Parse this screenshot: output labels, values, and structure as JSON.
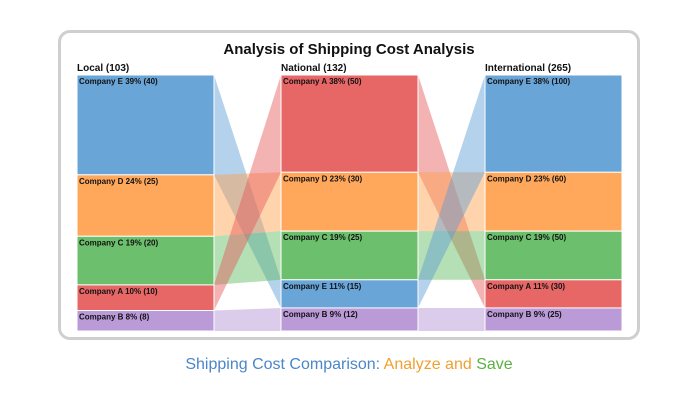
{
  "chart_data": {
    "type": "sankey",
    "title": "Analysis of Shipping Cost Analysis",
    "columns": [
      {
        "name": "Local",
        "total": 103,
        "header": "Local (103)",
        "segments": [
          {
            "company": "Company E",
            "percent": 39,
            "value": 40,
            "label": "Company E 39% (40)"
          },
          {
            "company": "Company D",
            "percent": 24,
            "value": 25,
            "label": "Company D 24% (25)"
          },
          {
            "company": "Company C",
            "percent": 19,
            "value": 20,
            "label": "Company C 19% (20)"
          },
          {
            "company": "Company A",
            "percent": 10,
            "value": 10,
            "label": "Company A 10% (10)"
          },
          {
            "company": "Company B",
            "percent": 8,
            "value": 8,
            "label": "Company B 8% (8)"
          }
        ]
      },
      {
        "name": "National",
        "total": 132,
        "header": "National (132)",
        "segments": [
          {
            "company": "Company A",
            "percent": 38,
            "value": 50,
            "label": "Company A 38% (50)"
          },
          {
            "company": "Company D",
            "percent": 23,
            "value": 30,
            "label": "Company D 23% (30)"
          },
          {
            "company": "Company C",
            "percent": 19,
            "value": 25,
            "label": "Company C 19% (25)"
          },
          {
            "company": "Company E",
            "percent": 11,
            "value": 15,
            "label": "Company E 11% (15)"
          },
          {
            "company": "Company B",
            "percent": 9,
            "value": 12,
            "label": "Company B 9% (12)"
          }
        ]
      },
      {
        "name": "International",
        "total": 265,
        "header": "International (265)",
        "segments": [
          {
            "company": "Company E",
            "percent": 38,
            "value": 100,
            "label": "Company E 38% (100)"
          },
          {
            "company": "Company D",
            "percent": 23,
            "value": 60,
            "label": "Company D 23% (60)"
          },
          {
            "company": "Company C",
            "percent": 19,
            "value": 50,
            "label": "Company C 19% (50)"
          },
          {
            "company": "Company A",
            "percent": 11,
            "value": 30,
            "label": "Company A 11% (30)"
          },
          {
            "company": "Company B",
            "percent": 9,
            "value": 25,
            "label": "Company B 9% (25)"
          }
        ]
      }
    ],
    "colors": {
      "Company A": "#e45756",
      "Company B": "#b28fd3",
      "Company C": "#5cb85c",
      "Company D": "#ff9f4a",
      "Company E": "#5a9bd4"
    }
  },
  "caption": {
    "part1": "Shipping Cost Comparison: ",
    "part2": "Analyze",
    "part3": " and ",
    "part4": "Save",
    "colors": [
      "#4a86c8",
      "#f0a030",
      "#f0a030",
      "#5cb040"
    ]
  }
}
